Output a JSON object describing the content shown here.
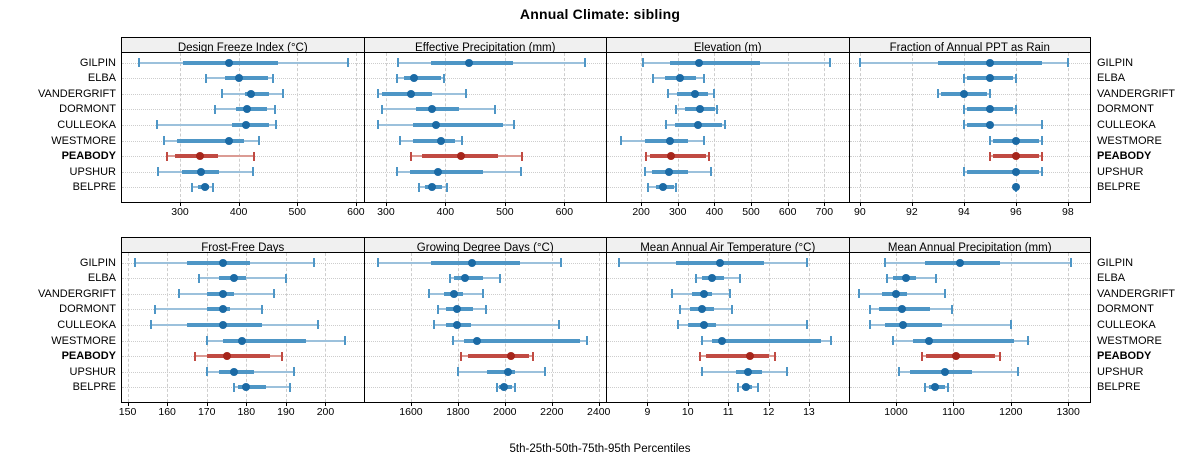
{
  "title": "Annual Climate: sibling",
  "footer": "5th-25th-50th-75th-95th Percentiles",
  "categories": [
    "GILPIN",
    "ELBA",
    "VANDERGRIFT",
    "DORMONT",
    "CULLEOKA",
    "WESTMORE",
    "PEABODY",
    "UPSHUR",
    "BELPRE"
  ],
  "highlight_category": "PEABODY",
  "colors": {
    "blue_dot": "#1b6aa5",
    "blue_band": "#4e96c6",
    "blue_line": "#9cc1dc",
    "red_dot": "#a6251b",
    "red_band": "#c14a42",
    "red_line": "#db9b94",
    "grid": "#cdcdcd",
    "strip_bg": "#f0f0f0",
    "panel_border": "#000000"
  },
  "chart_data": {
    "type": "scatter",
    "subtype": "percentile-interval-dot-plot",
    "title": "Annual Climate: sibling",
    "caption": "5th-25th-50th-75th-95th Percentiles",
    "legend_position": "none",
    "grid": "dashed-vertical-and-dotted-row-guides",
    "percentile_labels": [
      "5th",
      "25th",
      "50th",
      "75th",
      "95th"
    ],
    "row_order_top_to_bottom": [
      "GILPIN",
      "ELBA",
      "VANDERGRIFT",
      "DORMONT",
      "CULLEOKA",
      "WESTMORE",
      "PEABODY",
      "UPSHUR",
      "BELPRE"
    ],
    "panels": [
      {
        "title": "Design Freeze Index (°C)",
        "ticks": [
          300,
          400,
          500,
          600
        ],
        "xlim": [
          201,
          613
        ],
        "series": {
          "GILPIN": [
            230,
            305,
            383,
            468,
            587
          ],
          "ELBA": [
            345,
            376,
            400,
            450,
            458
          ],
          "VANDERGRIFT": [
            372,
            410,
            421,
            451,
            475
          ],
          "DORMONT": [
            360,
            395,
            414,
            448,
            462
          ],
          "CULLEOKA": [
            260,
            389,
            412,
            451,
            464
          ],
          "WESTMORE": [
            273,
            294,
            383,
            409,
            434
          ],
          "PEABODY": [
            278,
            292,
            334,
            364,
            426
          ],
          "UPSHUR": [
            262,
            304,
            335,
            366,
            424
          ],
          "BELPRE": [
            320,
            331,
            342,
            350,
            356
          ]
        }
      },
      {
        "title": "Effective Precipitation (mm)",
        "ticks": [
          300,
          400,
          500,
          600
        ],
        "xlim": [
          264,
          670
        ],
        "series": {
          "GILPIN": [
            320,
            376,
            440,
            514,
            635
          ],
          "ELBA": [
            319,
            330,
            348,
            393,
            398
          ],
          "VANDERGRIFT": [
            286,
            293,
            342,
            378,
            434
          ],
          "DORMONT": [
            293,
            351,
            377,
            423,
            483
          ],
          "CULLEOKA": [
            287,
            345,
            385,
            497,
            515
          ],
          "WESTMORE": [
            323,
            345,
            392,
            417,
            428
          ],
          "PEABODY": [
            342,
            360,
            427,
            489,
            528
          ],
          "UPSHUR": [
            318,
            340,
            388,
            464,
            527
          ],
          "BELPRE": [
            355,
            365,
            377,
            395,
            402
          ]
        }
      },
      {
        "title": "Elevation (m)",
        "ticks": [
          200,
          300,
          400,
          500,
          600,
          700
        ],
        "xlim": [
          107,
          766
        ],
        "series": {
          "GILPIN": [
            205,
            280,
            357,
            525,
            715
          ],
          "ELBA": [
            232,
            264,
            307,
            351,
            373
          ],
          "VANDERGRIFT": [
            273,
            297,
            348,
            382,
            399
          ],
          "DORMONT": [
            296,
            320,
            360,
            402,
            407
          ],
          "CULLEOKA": [
            267,
            293,
            355,
            420,
            429
          ],
          "WESTMORE": [
            145,
            212,
            280,
            328,
            373
          ],
          "PEABODY": [
            213,
            224,
            283,
            377,
            385
          ],
          "UPSHUR": [
            212,
            230,
            275,
            328,
            391
          ],
          "BELPRE": [
            220,
            240,
            261,
            289,
            294
          ]
        }
      },
      {
        "title": "Fraction of Annual PPT as Rain",
        "ticks": [
          90,
          92,
          94,
          96,
          98
        ],
        "xlim": [
          89.6,
          98.85
        ],
        "series": {
          "GILPIN": [
            90,
            93,
            95,
            97,
            98
          ],
          "ELBA": [
            94,
            94.1,
            95,
            95.9,
            96
          ],
          "VANDERGRIFT": [
            93,
            93.1,
            94,
            94.9,
            95
          ],
          "DORMONT": [
            94,
            94.1,
            95,
            95.9,
            96
          ],
          "CULLEOKA": [
            94,
            94.1,
            95,
            95.1,
            97
          ],
          "WESTMORE": [
            95,
            95.1,
            96,
            96.9,
            97
          ],
          "PEABODY": [
            95,
            95.1,
            96,
            96.9,
            97
          ],
          "UPSHUR": [
            94,
            94.1,
            96,
            96.9,
            97
          ],
          "BELPRE": [
            96,
            96,
            96,
            96,
            96
          ]
        }
      },
      {
        "title": "Frost-Free Days",
        "ticks": [
          150,
          160,
          170,
          180,
          190,
          200
        ],
        "xlim": [
          148.6,
          209.6
        ],
        "series": {
          "GILPIN": [
            152,
            165,
            174,
            181,
            197
          ],
          "ELBA": [
            168,
            173,
            177,
            180,
            190
          ],
          "VANDERGRIFT": [
            163,
            170,
            174,
            177,
            187
          ],
          "DORMONT": [
            157,
            170,
            174,
            176,
            184
          ],
          "CULLEOKA": [
            156,
            165,
            174,
            184,
            198
          ],
          "WESTMORE": [
            170,
            174,
            179,
            195,
            205
          ],
          "PEABODY": [
            167,
            170,
            175,
            186,
            189
          ],
          "UPSHUR": [
            170,
            173,
            177,
            182,
            192
          ],
          "BELPRE": [
            177,
            178,
            180,
            185,
            191
          ]
        }
      },
      {
        "title": "Growing Degree Days (°C)",
        "ticks": [
          1600,
          1800,
          2000,
          2200,
          2400
        ],
        "xlim": [
          1402,
          2431
        ],
        "series": {
          "GILPIN": [
            1460,
            1685,
            1860,
            2065,
            2240
          ],
          "ELBA": [
            1765,
            1785,
            1830,
            1905,
            1980
          ],
          "VANDERGRIFT": [
            1675,
            1740,
            1785,
            1820,
            1905
          ],
          "DORMONT": [
            1715,
            1750,
            1795,
            1865,
            1920
          ],
          "CULLEOKA": [
            1700,
            1748,
            1795,
            1855,
            2230
          ],
          "WESTMORE": [
            1780,
            1826,
            1882,
            2320,
            2350
          ],
          "PEABODY": [
            1812,
            1845,
            2025,
            2105,
            2120
          ],
          "UPSHUR": [
            1800,
            1925,
            2015,
            2045,
            2170
          ],
          "BELPRE": [
            1965,
            1975,
            1995,
            2030,
            2045
          ]
        }
      },
      {
        "title": "Mean Annual Air Temperature (°C)",
        "ticks": [
          9,
          10,
          11,
          12,
          13
        ],
        "xlim": [
          8.0,
          13.98
        ],
        "series": {
          "GILPIN": [
            8.3,
            9.7,
            10.8,
            11.9,
            12.95
          ],
          "ELBA": [
            10.2,
            10.35,
            10.6,
            10.9,
            11.3
          ],
          "VANDERGRIFT": [
            9.6,
            10.1,
            10.4,
            10.6,
            11.05
          ],
          "DORMONT": [
            9.8,
            10.05,
            10.35,
            10.65,
            11.1
          ],
          "CULLEOKA": [
            9.75,
            10.0,
            10.4,
            10.7,
            12.95
          ],
          "WESTMORE": [
            10.35,
            10.6,
            10.85,
            13.3,
            13.55
          ],
          "PEABODY": [
            10.3,
            10.45,
            11.55,
            12.0,
            12.15
          ],
          "UPSHUR": [
            10.35,
            11.2,
            11.5,
            11.85,
            12.45
          ],
          "BELPRE": [
            11.25,
            11.35,
            11.45,
            11.6,
            11.75
          ]
        }
      },
      {
        "title": "Mean Annual Precipitation (mm)",
        "ticks": [
          1000,
          1100,
          1200,
          1300
        ],
        "xlim": [
          919,
          1338
        ],
        "series": {
          "GILPIN": [
            980,
            1050,
            1112,
            1182,
            1305
          ],
          "ELBA": [
            985,
            995,
            1018,
            1035,
            1070
          ],
          "VANDERGRIFT": [
            935,
            975,
            1000,
            1020,
            1085
          ],
          "DORMONT": [
            955,
            970,
            1010,
            1060,
            1098
          ],
          "CULLEOKA": [
            955,
            980,
            1012,
            1080,
            1200
          ],
          "WESTMORE": [
            995,
            1030,
            1058,
            1205,
            1230
          ],
          "PEABODY": [
            1045,
            1053,
            1104,
            1172,
            1182
          ],
          "UPSHUR": [
            1005,
            1025,
            1085,
            1132,
            1212
          ],
          "BELPRE": [
            1050,
            1057,
            1068,
            1086,
            1090
          ]
        }
      }
    ]
  }
}
